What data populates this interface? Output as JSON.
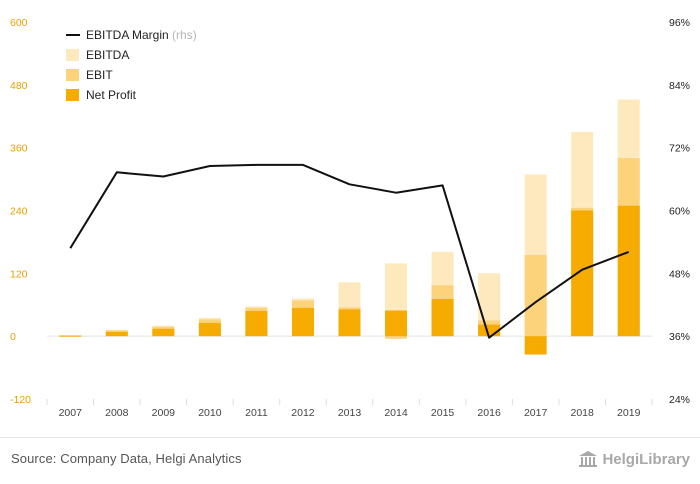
{
  "chart_data": {
    "type": "bar",
    "categories": [
      "2007",
      "2008",
      "2009",
      "2010",
      "2011",
      "2012",
      "2013",
      "2014",
      "2015",
      "2016",
      "2017",
      "2018",
      "2019"
    ],
    "left_axis": {
      "ylim": [
        -120,
        600
      ],
      "ticks": [
        "-120",
        "0",
        "120",
        "240",
        "360",
        "480",
        "600"
      ],
      "tick_values": [
        -120,
        0,
        120,
        240,
        360,
        480,
        600
      ]
    },
    "right_axis": {
      "ylim": [
        24,
        96
      ],
      "ticks": [
        "24%",
        "36%",
        "48%",
        "60%",
        "72%",
        "84%",
        "96%"
      ],
      "tick_values": [
        24,
        36,
        48,
        60,
        72,
        84,
        96
      ]
    },
    "series": [
      {
        "name": "EBITDA",
        "kind": "bar",
        "color": "#fde9bd",
        "values": [
          2,
          12,
          20,
          35,
          57,
          72,
          103,
          139,
          161,
          120,
          309,
          390,
          452
        ]
      },
      {
        "name": "EBIT",
        "kind": "bar",
        "color": "#fcd27b",
        "values": [
          1,
          11,
          18,
          32,
          54,
          68,
          55,
          -5,
          97,
          30,
          155,
          245,
          340
        ]
      },
      {
        "name": "Net Profit",
        "kind": "bar",
        "color": "#f5ab00",
        "values": [
          1,
          8,
          14,
          25,
          48,
          54,
          51,
          49,
          71,
          22,
          -35,
          240,
          249
        ]
      },
      {
        "name": "EBITDA Margin",
        "name_suffix": "(rhs)",
        "kind": "line",
        "color": "#111111",
        "axis": "right",
        "values": [
          52.8,
          67.3,
          66.5,
          68.5,
          68.7,
          68.7,
          65.0,
          63.4,
          64.8,
          35.7,
          42.5,
          48.7,
          52.1
        ]
      }
    ],
    "legend": {
      "placement": "top-left"
    },
    "grid": "vertical category separators",
    "colors": {
      "left_tick": "#e8a200",
      "right_tick": "#222222",
      "category_label": "#444444"
    }
  },
  "footer": {
    "source": "Source: Company Data, Helgi Analytics",
    "logo_text": "HelgiLibrary"
  }
}
